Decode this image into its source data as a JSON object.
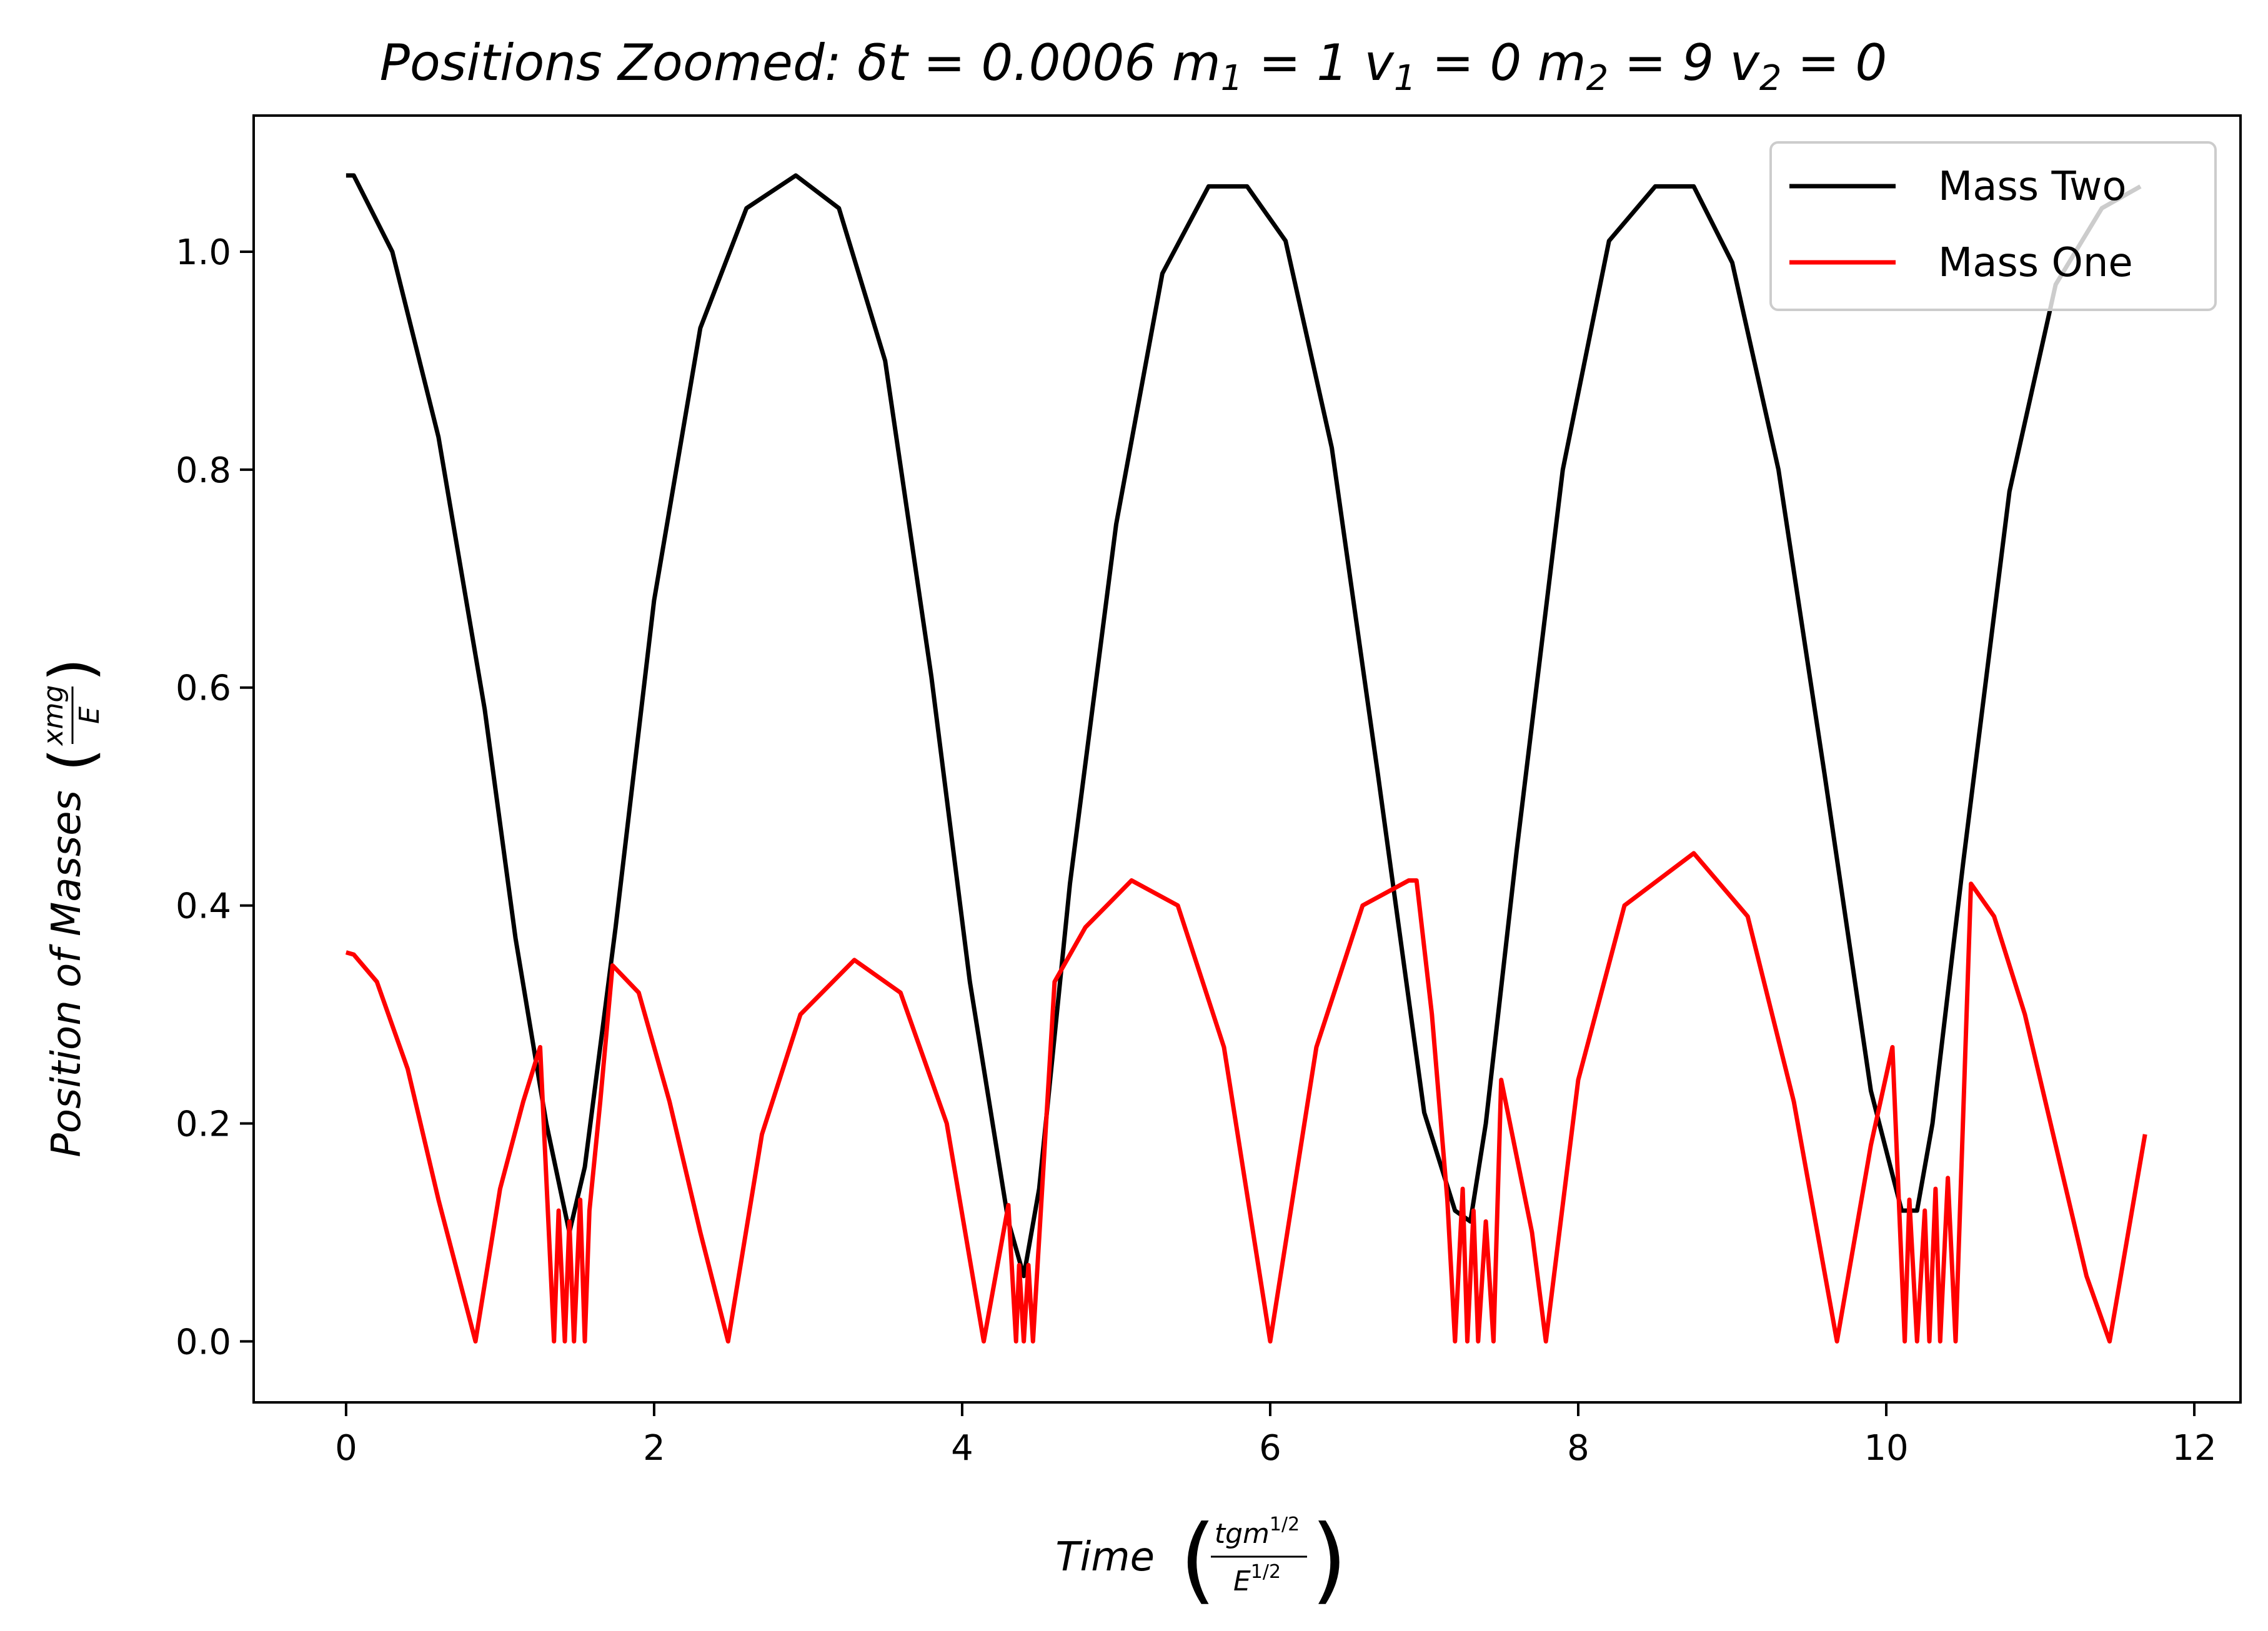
{
  "chart_data": {
    "type": "line",
    "title": {
      "prefix": "Positions Zoomed: ",
      "delta": "δ",
      "t": "t",
      "eq": " = ",
      "dt_value": "0.0006",
      "m": "m",
      "v": "v",
      "sub1": "1",
      "sub2": "2",
      "m1_value": "1",
      "v1_value": "0",
      "m2_value": "9",
      "v2_value": "0"
    },
    "xlabel": {
      "text": "Time",
      "numerator": "tgm",
      "num_sup": "1/2",
      "denominator": "E",
      "den_sup": "1/2"
    },
    "ylabel": {
      "text": "Position of Masses",
      "numerator": "xmg",
      "denominator": "E"
    },
    "xlim": [
      -0.6,
      12.3
    ],
    "ylim": [
      -0.056,
      1.125
    ],
    "xticks": [
      0,
      2,
      4,
      6,
      8,
      10,
      12
    ],
    "xtick_labels": [
      "0",
      "2",
      "4",
      "6",
      "8",
      "10",
      "12"
    ],
    "yticks": [
      0.0,
      0.2,
      0.4,
      0.6,
      0.8,
      1.0
    ],
    "ytick_labels": [
      "0.0",
      "0.2",
      "0.4",
      "0.6",
      "0.8",
      "1.0"
    ],
    "grid": false,
    "legend_position": "top-right",
    "series": [
      {
        "name": "Mass Two",
        "color": "#000000",
        "x": [
          0,
          0.05,
          0.3,
          0.6,
          0.9,
          1.1,
          1.3,
          1.45,
          1.55,
          1.75,
          2.0,
          2.3,
          2.6,
          2.92,
          3.2,
          3.5,
          3.8,
          4.05,
          4.3,
          4.4,
          4.5,
          4.7,
          5.0,
          5.3,
          5.6,
          5.85,
          6.1,
          6.4,
          6.7,
          7.0,
          7.2,
          7.3,
          7.4,
          7.6,
          7.9,
          8.2,
          8.5,
          8.75,
          9.0,
          9.3,
          9.6,
          9.9,
          10.1,
          10.2,
          10.3,
          10.5,
          10.8,
          11.1,
          11.4,
          11.65
        ],
        "y": [
          1.07,
          1.07,
          1.0,
          0.83,
          0.58,
          0.37,
          0.2,
          0.1,
          0.16,
          0.38,
          0.68,
          0.93,
          1.04,
          1.07,
          1.04,
          0.9,
          0.61,
          0.33,
          0.11,
          0.06,
          0.14,
          0.42,
          0.75,
          0.98,
          1.06,
          1.06,
          1.01,
          0.82,
          0.52,
          0.21,
          0.12,
          0.11,
          0.2,
          0.45,
          0.8,
          1.01,
          1.06,
          1.06,
          0.99,
          0.8,
          0.52,
          0.23,
          0.12,
          0.12,
          0.2,
          0.44,
          0.78,
          0.97,
          1.04,
          1.06
        ]
      },
      {
        "name": "Mass One",
        "color": "#ff0000",
        "x": [
          0,
          0.05,
          0.2,
          0.4,
          0.6,
          0.84,
          1.0,
          1.15,
          1.26,
          1.35,
          1.38,
          1.42,
          1.45,
          1.48,
          1.52,
          1.55,
          1.58,
          1.65,
          1.73,
          1.9,
          2.1,
          2.3,
          2.48,
          2.7,
          2.95,
          3.3,
          3.6,
          3.9,
          4.14,
          4.3,
          4.35,
          4.37,
          4.4,
          4.43,
          4.46,
          4.6,
          4.8,
          5.1,
          5.4,
          5.7,
          6.0,
          6.3,
          6.6,
          6.9,
          6.95,
          7.05,
          7.15,
          7.2,
          7.25,
          7.28,
          7.32,
          7.35,
          7.4,
          7.45,
          7.5,
          7.7,
          7.79,
          8.0,
          8.3,
          8.75,
          9.1,
          9.4,
          9.68,
          9.9,
          10.04,
          10.12,
          10.15,
          10.2,
          10.25,
          10.28,
          10.32,
          10.35,
          10.4,
          10.45,
          10.55,
          10.7,
          10.9,
          11.1,
          11.3,
          11.45,
          11.68
        ],
        "y": [
          0.357,
          0.355,
          0.33,
          0.25,
          0.13,
          0.0,
          0.14,
          0.22,
          0.27,
          0.0,
          0.12,
          0.0,
          0.11,
          0.0,
          0.13,
          0.0,
          0.12,
          0.22,
          0.345,
          0.32,
          0.22,
          0.1,
          0.0,
          0.19,
          0.3,
          0.35,
          0.32,
          0.2,
          0.0,
          0.125,
          0.0,
          0.07,
          0.0,
          0.07,
          0.0,
          0.33,
          0.38,
          0.423,
          0.4,
          0.27,
          0.0,
          0.27,
          0.4,
          0.423,
          0.423,
          0.3,
          0.13,
          0.0,
          0.14,
          0.0,
          0.12,
          0.0,
          0.11,
          0.0,
          0.24,
          0.1,
          0.0,
          0.24,
          0.4,
          0.448,
          0.39,
          0.22,
          0.0,
          0.18,
          0.27,
          0.0,
          0.13,
          0.0,
          0.12,
          0.0,
          0.14,
          0.0,
          0.15,
          0.0,
          0.42,
          0.39,
          0.3,
          0.18,
          0.06,
          0.0,
          0.19
        ]
      }
    ]
  }
}
